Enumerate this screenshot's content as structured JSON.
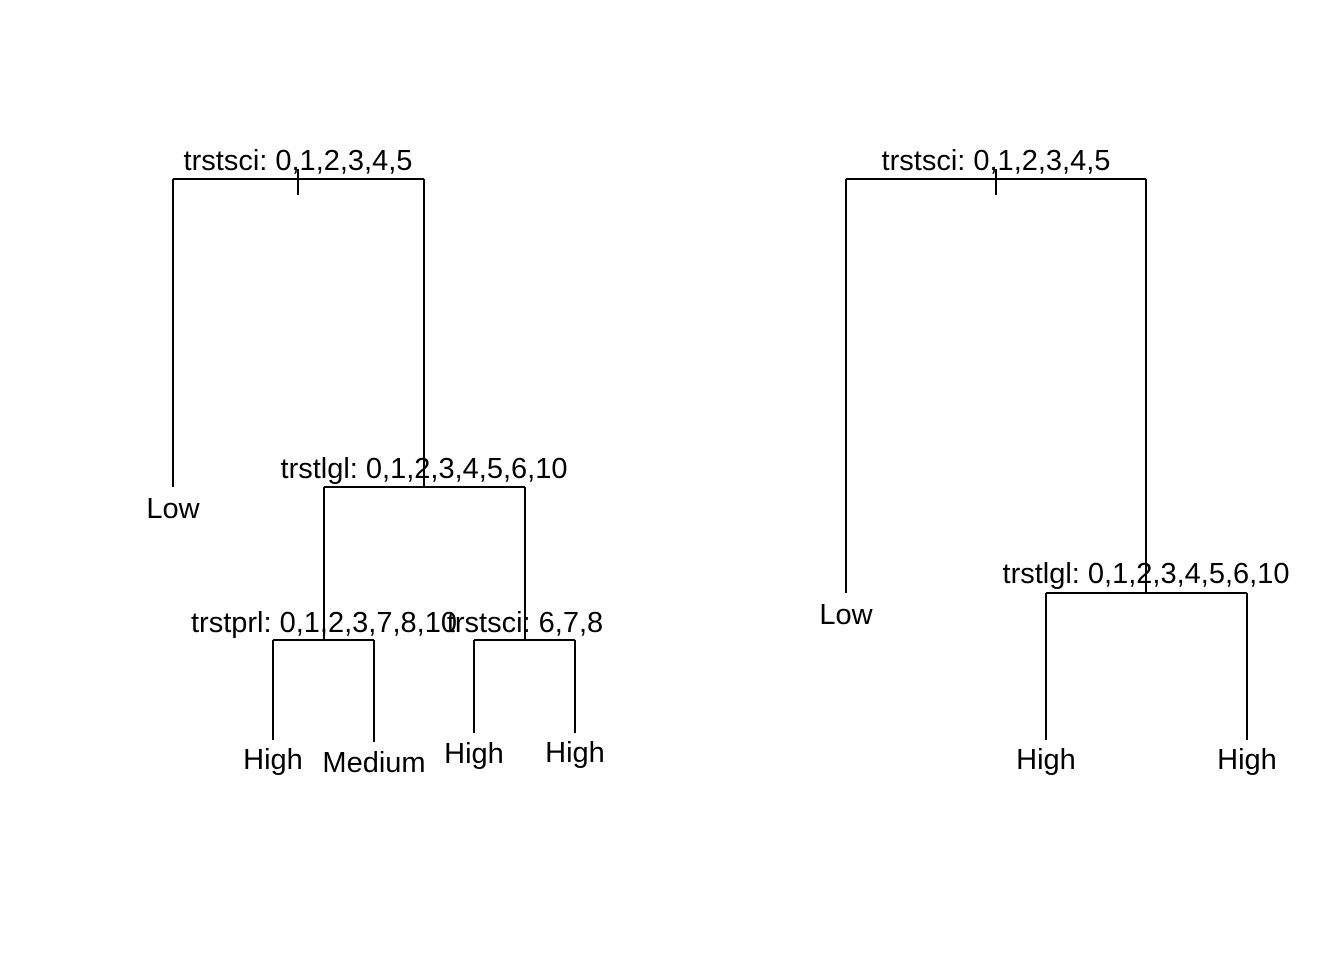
{
  "trees": [
    {
      "splits": [
        {
          "id": "root",
          "label": "trstsci: 0,1,2,3,4,5"
        },
        {
          "id": "n2",
          "label": "trstlgl: 0,1,2,3,4,5,6,10"
        },
        {
          "id": "n3",
          "label": "trstprl: 0,1,2,3,7,8,10"
        },
        {
          "id": "n4",
          "label": "trstsci: 6,7,8"
        }
      ],
      "leaves": [
        {
          "id": "l1",
          "label": "Low"
        },
        {
          "id": "l2",
          "label": "High"
        },
        {
          "id": "l3",
          "label": "Medium"
        },
        {
          "id": "l4",
          "label": "High"
        },
        {
          "id": "l5",
          "label": "High"
        }
      ]
    },
    {
      "splits": [
        {
          "id": "root",
          "label": "trstsci: 0,1,2,3,4,5"
        },
        {
          "id": "n2",
          "label": "trstlgl: 0,1,2,3,4,5,6,10"
        }
      ],
      "leaves": [
        {
          "id": "l1",
          "label": "Low"
        },
        {
          "id": "l2",
          "label": "High"
        },
        {
          "id": "l3",
          "label": "High"
        }
      ]
    }
  ]
}
